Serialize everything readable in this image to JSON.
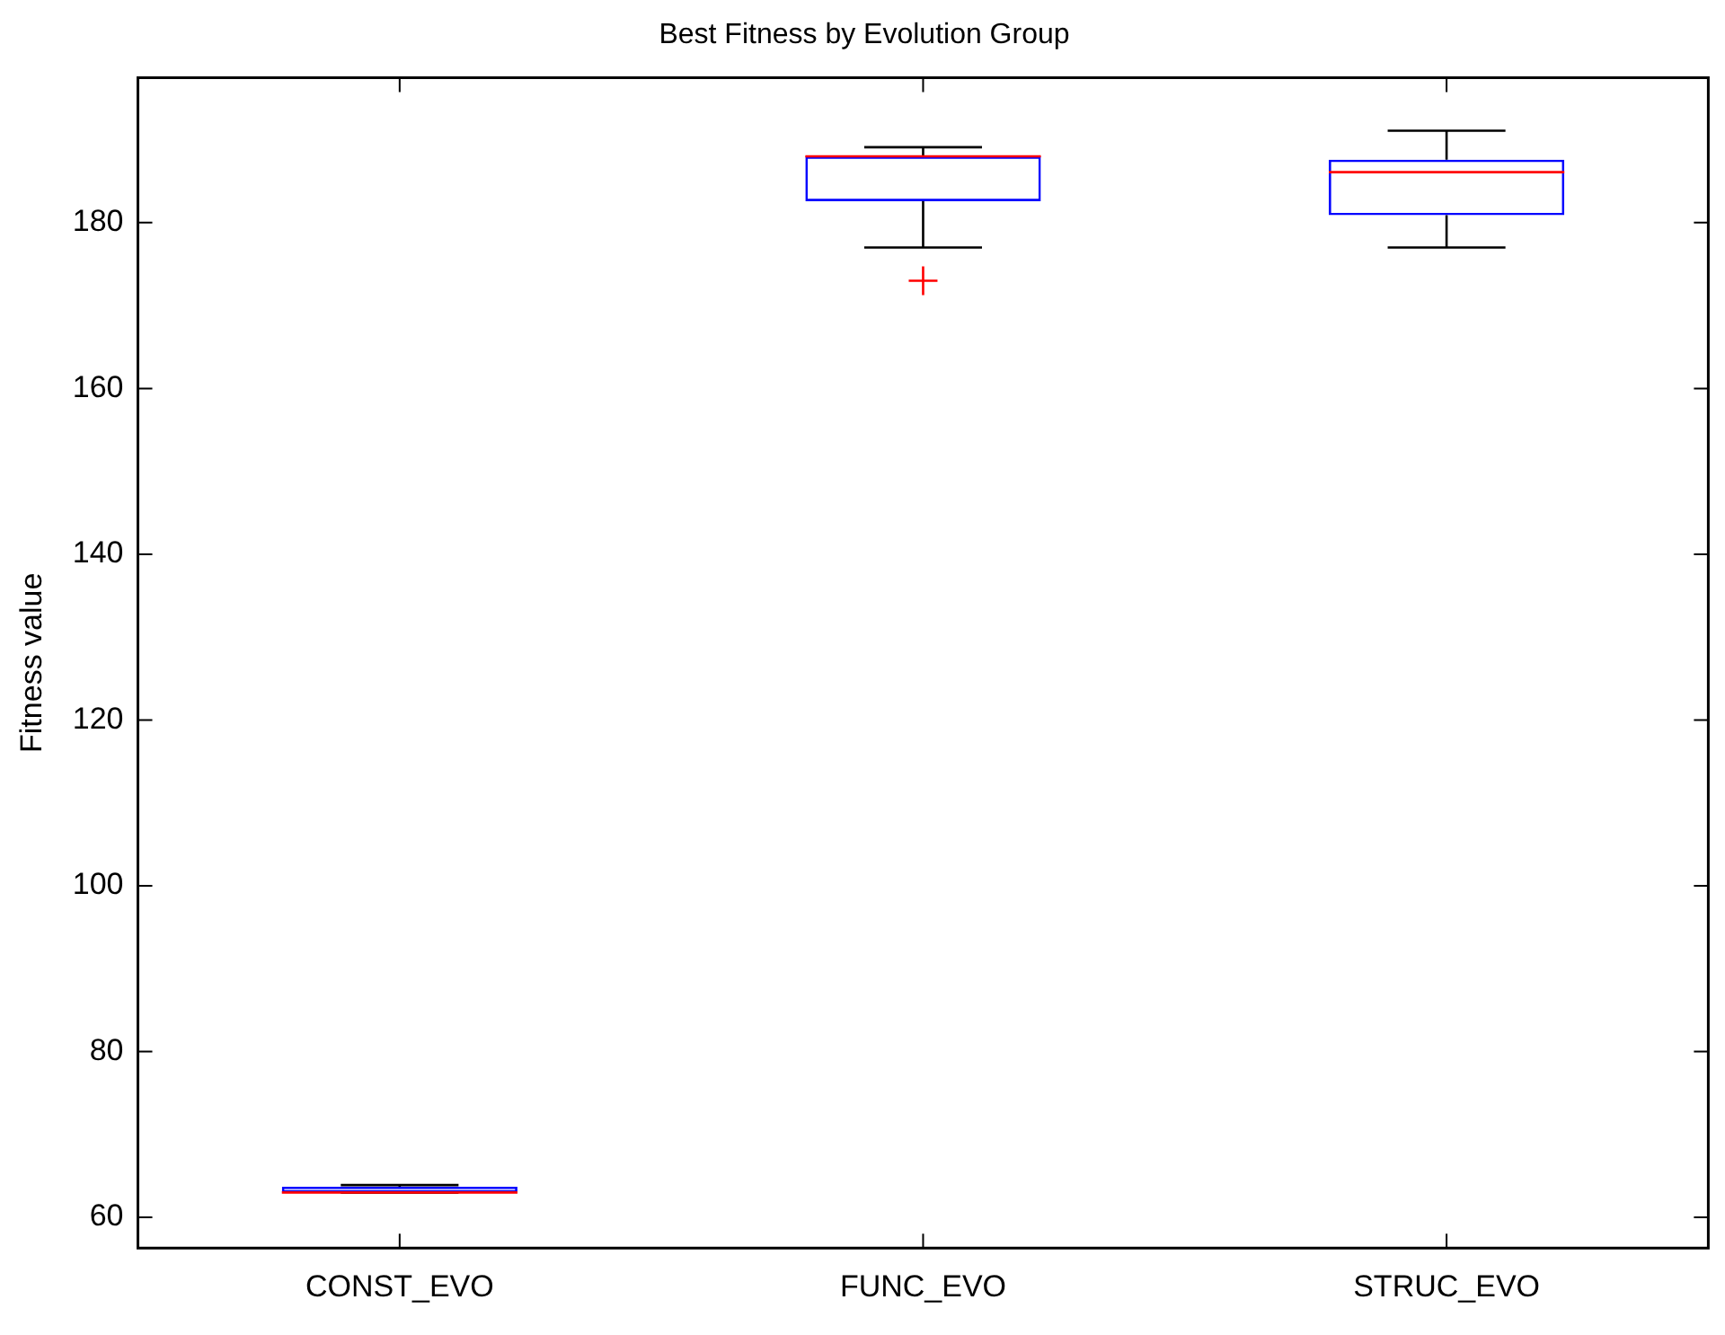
{
  "chart_data": {
    "type": "box",
    "title": "Best Fitness by Evolution Group",
    "ylabel": "Fitness value",
    "categories": [
      "CONST_EVO",
      "FUNC_EVO",
      "STRUC_EVO"
    ],
    "color": "#0000ff",
    "boxes": [
      {
        "low": 63.0,
        "q1": 63.0,
        "median": 63.0,
        "q3": 63.7,
        "high": 63.9
      },
      {
        "low": 177.0,
        "q1": 182.6,
        "median": 188.0,
        "q3": 188.0,
        "high": 189.1,
        "outliers": [
          173.0
        ]
      },
      {
        "low": 177.0,
        "q1": 180.9,
        "median": 186.1,
        "q3": 187.6,
        "high": 191.1
      }
    ],
    "ylim": [
      56.3,
      197.5
    ],
    "yticks": [
      60,
      80,
      100,
      120,
      140,
      160,
      180
    ],
    "grid": false,
    "legend": false
  }
}
